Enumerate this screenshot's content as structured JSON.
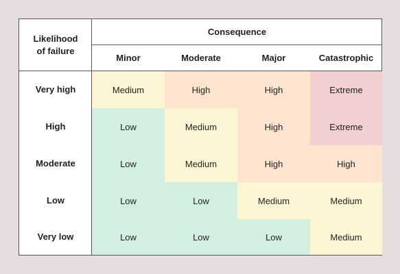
{
  "matrix": {
    "corner_label": "Likelihood\nof failure",
    "consequence_label": "Consequence",
    "columns": [
      "Minor",
      "Moderate",
      "Major",
      "Catastrophic"
    ],
    "rows": [
      {
        "label": "Very high",
        "cells": [
          "Medium",
          "High",
          "High",
          "Extreme"
        ]
      },
      {
        "label": "High",
        "cells": [
          "Low",
          "Medium",
          "High",
          "Extreme"
        ]
      },
      {
        "label": "Moderate",
        "cells": [
          "Low",
          "Medium",
          "High",
          "High"
        ]
      },
      {
        "label": "Low",
        "cells": [
          "Low",
          "Low",
          "Medium",
          "Medium"
        ]
      },
      {
        "label": "Very low",
        "cells": [
          "Low",
          "Low",
          "Low",
          "Medium"
        ]
      }
    ],
    "level_colors": {
      "Low": "#d3efe1",
      "Medium": "#fdf6d5",
      "High": "#fce4cf",
      "Extreme": "#f2d0d1"
    }
  }
}
